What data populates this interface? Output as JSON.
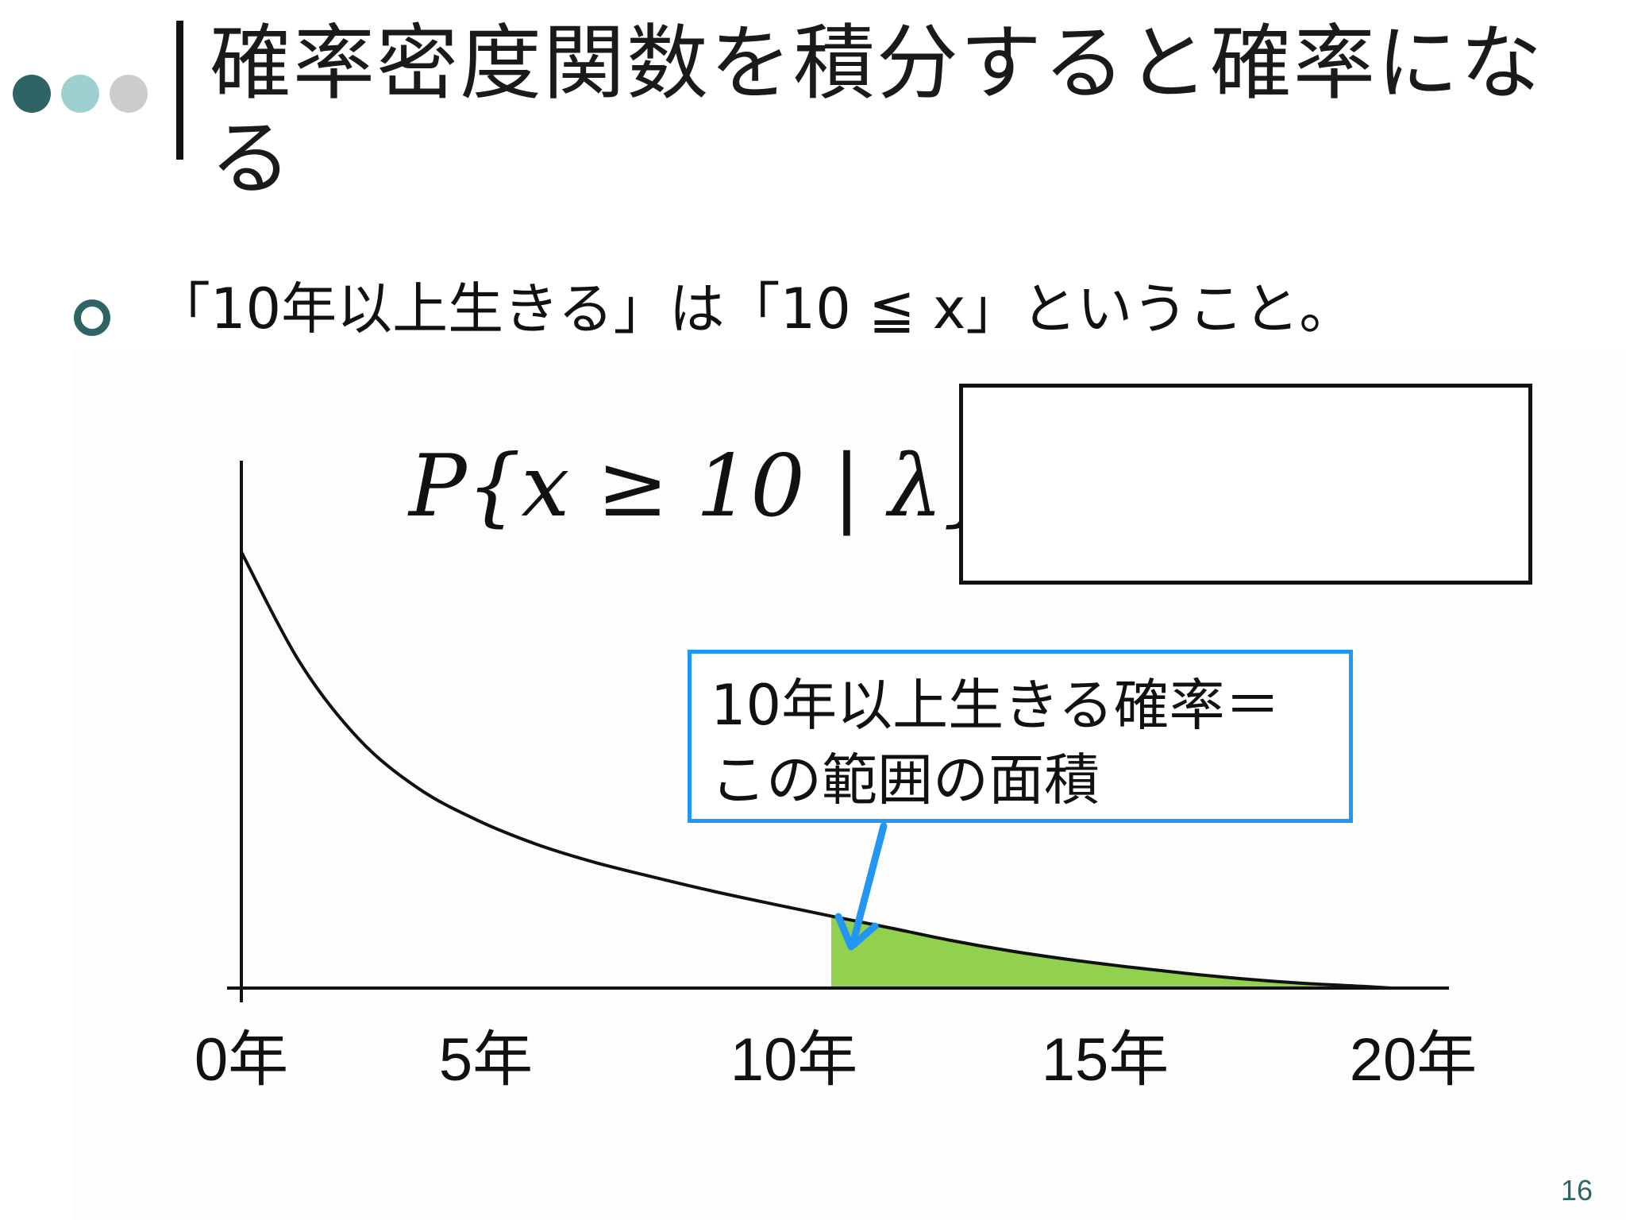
{
  "slide": {
    "title": "確率密度関数を積分すると確率になる",
    "bullet": "「10年以上生きる」は「10 ≦ x」ということ。",
    "formula": "P{x ≥ 10 | λ} =",
    "callout": {
      "line1": "10年以上生きる確率＝",
      "line2": "この範囲の面積"
    },
    "page_number": "16"
  },
  "colors": {
    "dot_dark": "#2e6466",
    "dot_light": "#9fd0d0",
    "dot_gray": "#cccccc",
    "shaded_area": "#92d050",
    "callout_border": "#2196f3",
    "arrow": "#2196f3",
    "curve": "#111111"
  },
  "chart_data": {
    "type": "area",
    "x_tick_labels": [
      "0年",
      "5年",
      "10年",
      "15年",
      "20年"
    ],
    "x_ticks": [
      0,
      5,
      10,
      15,
      20
    ],
    "xlim": [
      0,
      20
    ],
    "curve_points": [
      {
        "x": 0,
        "y": 1.0
      },
      {
        "x": 1,
        "y": 0.745
      },
      {
        "x": 2,
        "y": 0.57
      },
      {
        "x": 3,
        "y": 0.458
      },
      {
        "x": 4,
        "y": 0.385
      },
      {
        "x": 5,
        "y": 0.33
      },
      {
        "x": 6,
        "y": 0.288
      },
      {
        "x": 7,
        "y": 0.254
      },
      {
        "x": 8,
        "y": 0.222
      },
      {
        "x": 9,
        "y": 0.193
      },
      {
        "x": 10,
        "y": 0.165
      },
      {
        "x": 11,
        "y": 0.138
      },
      {
        "x": 12,
        "y": 0.11
      },
      {
        "x": 13,
        "y": 0.086
      },
      {
        "x": 14,
        "y": 0.066
      },
      {
        "x": 15,
        "y": 0.049
      },
      {
        "x": 16,
        "y": 0.034
      },
      {
        "x": 17,
        "y": 0.021
      },
      {
        "x": 18,
        "y": 0.011
      },
      {
        "x": 19,
        "y": 0.004
      },
      {
        "x": 19.5,
        "y": 0.0
      }
    ],
    "shaded_from_x": 10
  }
}
